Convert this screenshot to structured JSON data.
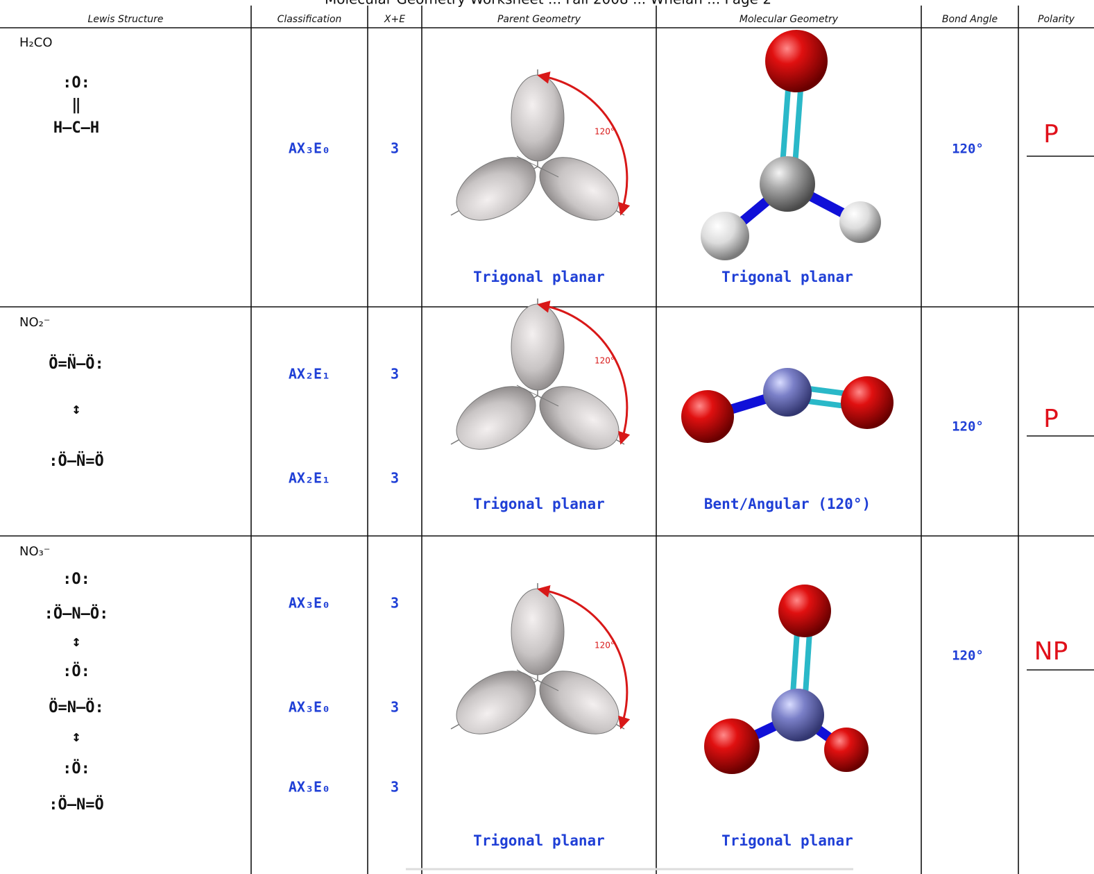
{
  "header": {
    "title": "Molecular Geometry Worksheet ... Fall 2008 ... Whelan ... Page 2"
  },
  "table": {
    "columns": [
      "Lewis Structure",
      "Classification",
      "X+E",
      "Parent Geometry",
      "Molecular Geometry",
      "Bond Angle",
      "Polarity"
    ],
    "rows": [
      {
        "formula": "H₂CO",
        "lewis": [
          ":O:",
          "‖",
          "H—C—H"
        ],
        "classifications": [
          "AX₃E₀"
        ],
        "xe": [
          "3"
        ],
        "parent_angle_label": "120°",
        "parent_geometry": "Trigonal planar",
        "molecular_geometry": "Trigonal planar",
        "bond_angle": "120°",
        "polarity": "P"
      },
      {
        "formula": "NO₂⁻",
        "lewis": [
          "Ö=N̈—Ö:",
          "↕",
          ":Ö—N̈=Ö"
        ],
        "classifications": [
          "AX₂E₁",
          "AX₂E₁"
        ],
        "xe": [
          "3",
          "3"
        ],
        "parent_angle_label": "120°",
        "parent_geometry": "Trigonal planar",
        "molecular_geometry": "Bent/Angular (120°)",
        "bond_angle": "120°",
        "polarity": "P"
      },
      {
        "formula": "NO₃⁻",
        "lewis": [
          ":O:",
          ":Ö—N—Ö:",
          "↕",
          ":Ö:",
          "Ö=N—Ö:",
          "↕",
          ":Ö:",
          ":Ö—N=Ö"
        ],
        "classifications": [
          "AX₃E₀",
          "AX₃E₀",
          "AX₃E₀"
        ],
        "xe": [
          "3",
          "3",
          "3"
        ],
        "parent_angle_label": "120°",
        "parent_geometry": "Trigonal planar",
        "molecular_geometry": "Trigonal planar",
        "bond_angle": "120°",
        "polarity": "NP"
      }
    ]
  }
}
